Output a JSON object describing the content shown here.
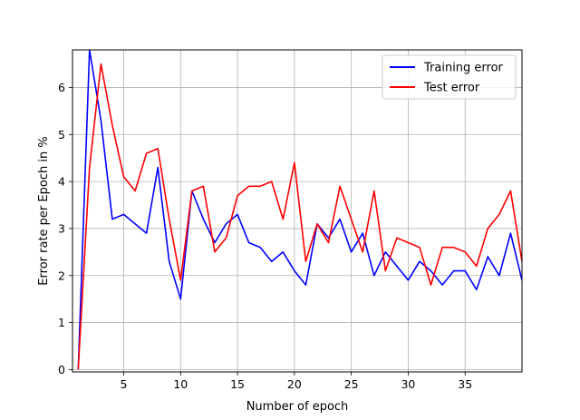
{
  "chart_data": {
    "type": "line",
    "title": "",
    "xlabel": "Number of epoch",
    "ylabel": "Error rate per Epoch in %",
    "xlim": [
      0.5,
      40
    ],
    "ylim": [
      -0.05,
      6.8
    ],
    "xticks": [
      5,
      10,
      15,
      20,
      25,
      30,
      35
    ],
    "yticks": [
      0,
      1,
      2,
      3,
      4,
      5,
      6
    ],
    "grid": true,
    "legend_position": "top-right",
    "x": [
      1,
      2,
      3,
      4,
      5,
      6,
      7,
      8,
      9,
      10,
      11,
      12,
      13,
      14,
      15,
      16,
      17,
      18,
      19,
      20,
      21,
      22,
      23,
      24,
      25,
      26,
      27,
      28,
      29,
      30,
      31,
      32,
      33,
      34,
      35,
      36,
      37,
      38,
      39,
      40
    ],
    "series": [
      {
        "name": "Training error",
        "color": "#0000ff",
        "values": [
          0,
          6.8,
          5.3,
          3.2,
          3.3,
          3.1,
          2.9,
          4.3,
          2.3,
          1.5,
          3.8,
          3.2,
          2.7,
          3.1,
          3.3,
          2.7,
          2.6,
          2.3,
          2.5,
          2.1,
          1.8,
          3.1,
          2.8,
          3.2,
          2.5,
          2.9,
          2.0,
          2.5,
          2.2,
          1.9,
          2.3,
          2.1,
          1.8,
          2.1,
          2.1,
          1.7,
          2.4,
          2.0,
          2.9,
          1.9
        ]
      },
      {
        "name": "Test error",
        "color": "#ff0000",
        "values": [
          0,
          4.3,
          6.5,
          5.2,
          4.1,
          3.8,
          4.6,
          4.7,
          3.2,
          1.9,
          3.8,
          3.9,
          2.5,
          2.8,
          3.7,
          3.9,
          3.9,
          4.0,
          3.2,
          4.4,
          2.3,
          3.1,
          2.7,
          3.9,
          3.2,
          2.5,
          3.8,
          2.1,
          2.8,
          2.7,
          2.6,
          1.8,
          2.6,
          2.6,
          2.5,
          2.2,
          3.0,
          3.3,
          3.8,
          2.3
        ]
      }
    ]
  }
}
